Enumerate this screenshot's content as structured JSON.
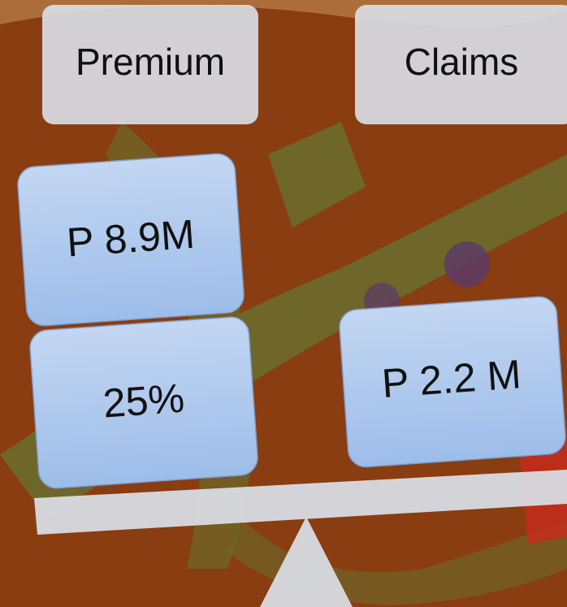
{
  "columns": [
    {
      "title": "Premium",
      "items": [
        "P 8.9M",
        "25%"
      ]
    },
    {
      "title": "Claims",
      "items": [
        "P 2.2 M"
      ]
    }
  ]
}
